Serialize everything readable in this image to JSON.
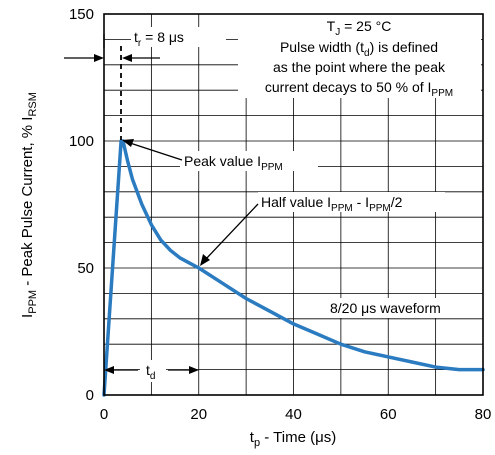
{
  "chart_data": {
    "type": "line",
    "title": "",
    "xlabel": {
      "main": "t",
      "sub": "p",
      "rest": " - Time (μs)"
    },
    "ylabel": {
      "p1": "I",
      "sub1": "PPM",
      "p2": " - Peak Pulse Current, % I",
      "sub2": "RSM"
    },
    "xlim": [
      0,
      80
    ],
    "ylim": [
      0,
      150
    ],
    "xticks": [
      0,
      20,
      40,
      60,
      80
    ],
    "yticks": [
      0,
      50,
      100,
      150
    ],
    "grid": true,
    "series": [
      {
        "name": "8/20 μs waveform",
        "color": "#2b7bc1",
        "x": [
          0,
          3.6,
          4,
          5,
          6,
          8,
          10,
          12,
          14,
          16,
          18,
          20,
          25,
          30,
          35,
          40,
          45,
          50,
          55,
          60,
          65,
          70,
          75,
          80
        ],
        "y": [
          0,
          100,
          100,
          92,
          85,
          75,
          67,
          61,
          57,
          54,
          52,
          50,
          44,
          38,
          33,
          28,
          24,
          20,
          17,
          15,
          13,
          11,
          10,
          10
        ]
      }
    ],
    "annotations": {
      "tr": {
        "p1": "t",
        "sub": "r",
        "p2": " = 8 μs"
      },
      "tj": {
        "p1": "T",
        "sub": "J",
        "p2": " = 25 °C"
      },
      "pulse_line1": {
        "p1": "Pulse width (t",
        "sub": "d",
        "p2": ") is defined"
      },
      "pulse_line2": "as the point where the peak",
      "pulse_line3": {
        "p1": "current decays to 50 % of I",
        "sub": "PPM"
      },
      "peak": {
        "p1": "Peak value I",
        "sub": "PPM"
      },
      "half": {
        "p1": "Half value I",
        "sub1": "PPM",
        "p2": " - I",
        "sub2": "PPM",
        "p3": "/2"
      },
      "waveform": "8/20 μs waveform",
      "td": {
        "p1": "t",
        "sub": "d"
      }
    }
  }
}
